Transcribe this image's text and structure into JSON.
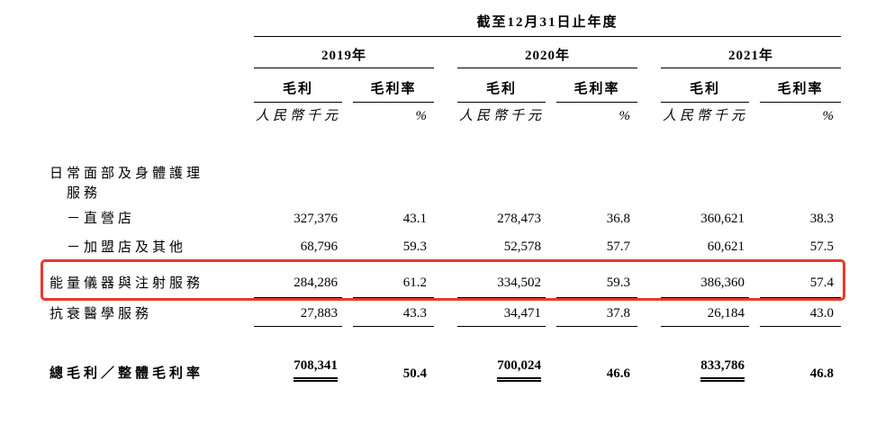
{
  "theme": {
    "highlight": "#e8392c",
    "ink": "#000000",
    "bg": "#ffffff"
  },
  "table": {
    "title": "截至12月31日止年度",
    "year_groups": [
      {
        "year": "2019年",
        "gp_label": "毛利",
        "margin_label": "毛利率",
        "gp_unit": "人民幣千元",
        "margin_unit": "%"
      },
      {
        "year": "2020年",
        "gp_label": "毛利",
        "margin_label": "毛利率",
        "gp_unit": "人民幣千元",
        "margin_unit": "%"
      },
      {
        "year": "2021年",
        "gp_label": "毛利",
        "margin_label": "毛利率",
        "gp_unit": "人民幣千元",
        "margin_unit": "%"
      }
    ],
    "category_header": {
      "line1": "日常面部及身體護理",
      "line2": "服務"
    },
    "rows": [
      {
        "label": "－直營店",
        "values": [
          "327,376",
          "43.1",
          "278,473",
          "36.8",
          "360,621",
          "38.3"
        ]
      },
      {
        "label": "－加盟店及其他",
        "values": [
          "68,796",
          "59.3",
          "52,578",
          "57.7",
          "60,621",
          "57.5"
        ]
      },
      {
        "label": "能量儀器與注射服務",
        "values": [
          "284,286",
          "61.2",
          "334,502",
          "59.3",
          "386,360",
          "57.4"
        ]
      },
      {
        "label": "抗衰醫學服務",
        "values": [
          "27,883",
          "43.3",
          "34,471",
          "37.8",
          "26,184",
          "43.0"
        ]
      }
    ],
    "total_row": {
      "label": "總毛利／整體毛利率",
      "values": [
        "708,341",
        "50.4",
        "700,024",
        "46.6",
        "833,786",
        "46.8"
      ]
    },
    "highlight": {
      "highlighted_row_label": "能量儀器與注射服務",
      "color": "#e8392c"
    }
  }
}
